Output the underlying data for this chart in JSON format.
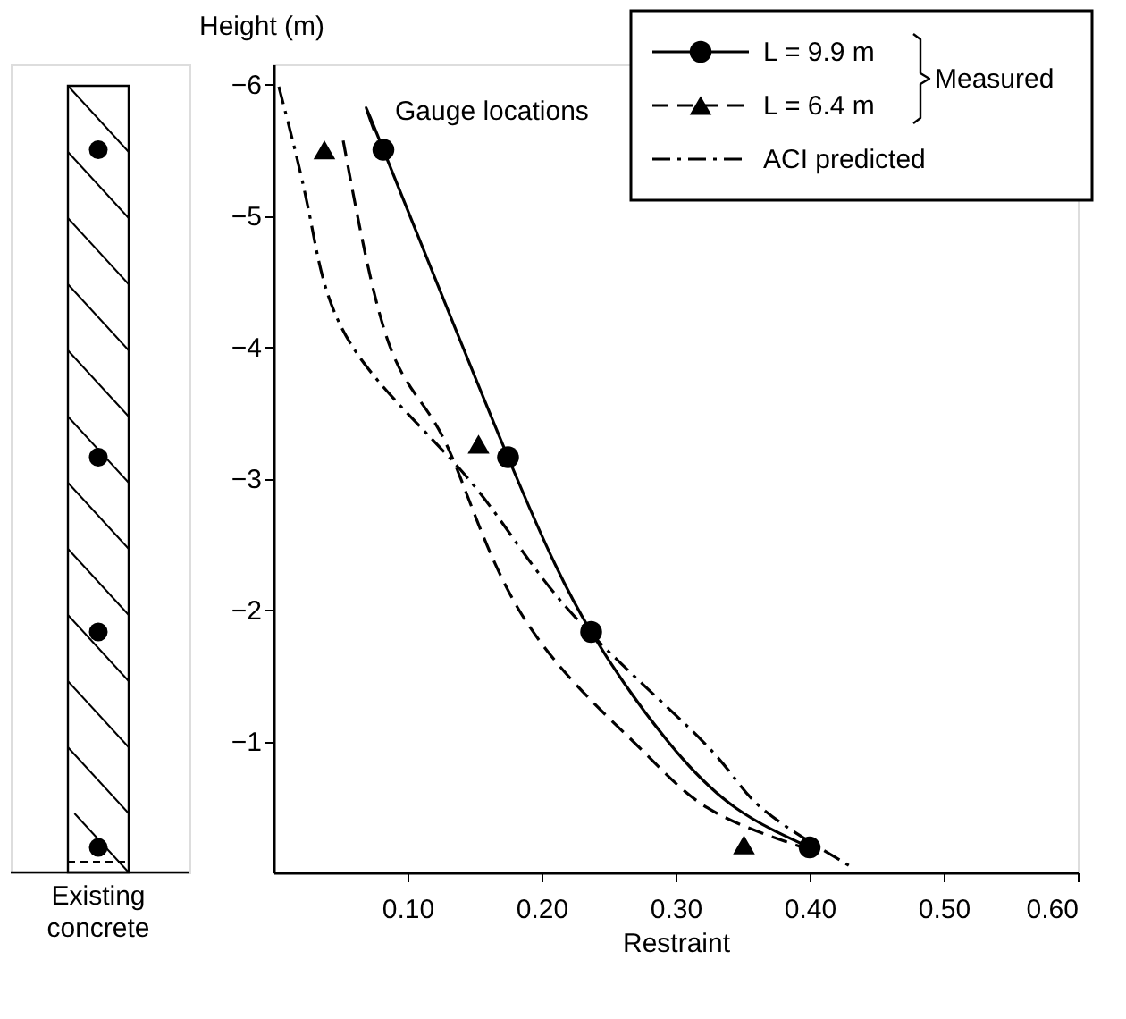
{
  "chart_data": {
    "type": "line",
    "xlabel": "Restraint",
    "ylabel": "Height (m)",
    "xlim": [
      0,
      0.6
    ],
    "ylim": [
      0,
      -6.15
    ],
    "xticks": [
      {
        "value": 0.1,
        "label": "0.10"
      },
      {
        "value": 0.2,
        "label": "0.20"
      },
      {
        "value": 0.3,
        "label": "0.30"
      },
      {
        "value": 0.4,
        "label": "0.40"
      },
      {
        "value": 0.5,
        "label": "0.50"
      },
      {
        "value": 0.6,
        "label": "0.60"
      }
    ],
    "yticks": [
      -1,
      -2,
      -3,
      -4,
      -5,
      -6
    ],
    "grid": false,
    "legend": "top right",
    "annotations": [
      "Gauge locations",
      "Measured",
      "Existing concrete"
    ],
    "series": [
      {
        "name": "L = 9.9 m",
        "color": "#000000",
        "line_style": "solid",
        "x": [
          0.075,
          0.082,
          0.175,
          0.237,
          0.294,
          0.345,
          0.4
        ],
        "values": [
          -5.65,
          -5.5,
          -3.16,
          -1.83,
          -1.0,
          -0.49,
          -0.19
        ]
      },
      {
        "type": "scatter",
        "marker": "circle",
        "color": "#000000",
        "x": [
          0.082,
          0.175,
          0.237,
          0.4
        ],
        "values": [
          -5.5,
          -3.16,
          -1.83,
          -0.19
        ]
      },
      {
        "name": "L = 6.4 m",
        "color": "#000000",
        "line_style": "dashed",
        "x": [
          0.052,
          0.087,
          0.128,
          0.183,
          0.268,
          0.324,
          0.395
        ],
        "values": [
          -5.57,
          -4.0,
          -3.28,
          -2.0,
          -1.0,
          -0.49,
          -0.19
        ]
      },
      {
        "type": "scatter",
        "marker": "triangle",
        "color": "#000000",
        "x": [
          0.038,
          0.153,
          0.351
        ],
        "values": [
          -5.5,
          -3.26,
          -0.21
        ]
      },
      {
        "name": "ACI predicted",
        "color": "#000000",
        "line_style": "dashdot",
        "x": [
          0.004,
          0.027,
          0.059,
          0.145,
          0.22,
          0.32,
          0.363,
          0.433
        ],
        "values": [
          -5.98,
          -5.0,
          -4.0,
          -3.0,
          -2.0,
          -1.0,
          -0.5,
          -0.03
        ]
      }
    ]
  }
}
